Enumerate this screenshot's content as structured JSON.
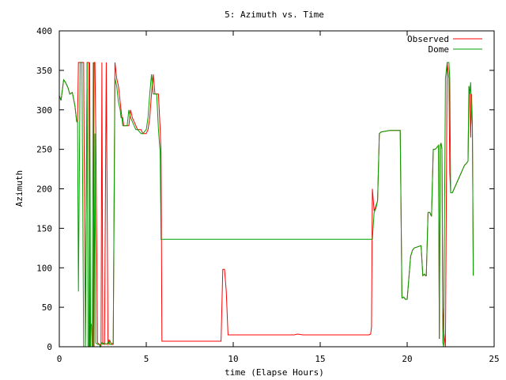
{
  "chart_data": {
    "type": "line",
    "title": "5: Azimuth vs. Time",
    "xlabel": "time (Elapse Hours)",
    "ylabel": "Azimuth",
    "xlim": [
      0,
      25
    ],
    "ylim": [
      0,
      400
    ],
    "xticks": [
      0,
      5,
      10,
      15,
      20,
      25
    ],
    "yticks": [
      0,
      50,
      100,
      150,
      200,
      250,
      300,
      350,
      400
    ],
    "grid": false,
    "legend_position": "top-right",
    "series": [
      {
        "name": "Observed",
        "color": "#ff0000",
        "x": [
          0,
          0.1,
          0.25,
          0.35,
          0.5,
          0.6,
          0.75,
          0.9,
          1.0,
          1.05,
          1.1,
          1.2,
          1.3,
          1.4,
          1.5,
          1.6,
          1.65,
          1.7,
          1.75,
          1.8,
          1.85,
          1.9,
          1.95,
          2.0,
          2.05,
          2.1,
          2.2,
          2.3,
          2.35,
          2.4,
          2.45,
          2.5,
          2.6,
          2.7,
          2.8,
          2.85,
          2.9,
          3.0,
          3.1,
          3.2,
          3.3,
          3.4,
          3.5,
          3.55,
          3.6,
          3.65,
          3.7,
          3.8,
          3.9,
          4.0,
          4.1,
          4.2,
          4.3,
          4.4,
          4.5,
          4.7,
          4.8,
          5.0,
          5.1,
          5.2,
          5.3,
          5.4,
          5.5,
          5.6,
          5.7,
          5.8,
          5.85,
          5.9,
          6.0,
          9.2,
          9.3,
          9.4,
          9.5,
          9.6,
          9.7,
          13.5,
          13.7,
          14.0,
          17.8,
          17.9,
          17.95,
          18.0,
          18.1,
          18.2,
          18.3,
          18.4,
          18.5,
          19.0,
          19.6,
          19.7,
          19.75,
          19.8,
          19.9,
          20.0,
          20.2,
          20.25,
          20.3,
          20.4,
          20.8,
          20.9,
          21.0,
          21.05,
          21.1,
          21.2,
          21.3,
          21.4,
          21.5,
          21.6,
          21.7,
          21.8,
          21.85,
          21.9,
          21.95,
          22.0,
          22.05,
          22.1,
          22.2,
          22.3,
          22.4,
          22.45,
          22.5,
          22.6,
          22.7,
          22.8,
          22.9,
          23.0,
          23.1,
          23.2,
          23.3,
          23.4,
          23.5,
          23.55,
          23.6,
          23.65,
          23.7,
          23.75,
          23.8
        ],
        "y": [
          318,
          312,
          338,
          335,
          328,
          320,
          322,
          305,
          285,
          285,
          360,
          360,
          360,
          360,
          0,
          360,
          360,
          360,
          0,
          30,
          27,
          0,
          0,
          360,
          360,
          270,
          5,
          3,
          3,
          0,
          360,
          5,
          3,
          360,
          3,
          5,
          8,
          3,
          3,
          360,
          340,
          330,
          310,
          300,
          290,
          290,
          280,
          280,
          280,
          280,
          300,
          290,
          285,
          280,
          275,
          275,
          270,
          270,
          275,
          290,
          320,
          345,
          320,
          320,
          320,
          275,
          245,
          7,
          7,
          7,
          7,
          98,
          98,
          70,
          15,
          15,
          16,
          15,
          15,
          16,
          25,
          200,
          172,
          178,
          185,
          270,
          272,
          274,
          274,
          62,
          62,
          63,
          60,
          60,
          115,
          118,
          122,
          125,
          128,
          90,
          92,
          90,
          90,
          170,
          170,
          165,
          250,
          250,
          252,
          255,
          10,
          255,
          258,
          250,
          50,
          20,
          0,
          360,
          340,
          220,
          195,
          195,
          200,
          205,
          210,
          215,
          220,
          225,
          230,
          232,
          235,
          330,
          320,
          265,
          320,
          280,
          90
        ]
      },
      {
        "name": "Dome",
        "color": "#00a000",
        "x": [
          0,
          0.1,
          0.25,
          0.35,
          0.5,
          0.6,
          0.75,
          0.9,
          1.0,
          1.05,
          1.1,
          1.2,
          1.3,
          1.4,
          1.5,
          1.6,
          1.65,
          1.7,
          1.75,
          1.8,
          1.85,
          1.9,
          1.95,
          2.0,
          2.05,
          2.1,
          2.2,
          2.3,
          2.35,
          2.4,
          2.45,
          2.5,
          2.6,
          2.7,
          2.8,
          2.85,
          2.9,
          3.0,
          3.1,
          3.2,
          3.3,
          3.4,
          3.5,
          3.55,
          3.6,
          3.65,
          3.7,
          3.8,
          3.9,
          4.0,
          4.1,
          4.2,
          4.3,
          4.4,
          4.5,
          4.7,
          4.8,
          5.0,
          5.1,
          5.2,
          5.3,
          5.4,
          5.5,
          5.6,
          5.7,
          5.8,
          5.85,
          5.9,
          6.0,
          18.0,
          18.1,
          18.2,
          18.3,
          18.4,
          18.5,
          19.0,
          19.6,
          19.7,
          19.75,
          19.8,
          19.9,
          20.0,
          20.2,
          20.25,
          20.3,
          20.4,
          20.8,
          20.9,
          21.0,
          21.05,
          21.1,
          21.2,
          21.3,
          21.4,
          21.5,
          21.6,
          21.7,
          21.8,
          21.85,
          21.9,
          21.95,
          22.0,
          22.05,
          22.1,
          22.2,
          22.3,
          22.4,
          22.45,
          22.5,
          22.6,
          22.7,
          22.8,
          22.9,
          23.0,
          23.1,
          23.2,
          23.3,
          23.4,
          23.5,
          23.55,
          23.6,
          23.65,
          23.7,
          23.75,
          23.8
        ],
        "y": [
          318,
          312,
          338,
          335,
          328,
          320,
          322,
          305,
          285,
          285,
          70,
          360,
          360,
          0,
          0,
          360,
          0,
          0,
          360,
          0,
          0,
          0,
          360,
          0,
          270,
          5,
          3,
          3,
          0,
          3,
          5,
          3,
          5,
          3,
          5,
          8,
          3,
          3,
          5,
          340,
          330,
          310,
          300,
          290,
          290,
          280,
          280,
          280,
          280,
          300,
          290,
          285,
          280,
          275,
          275,
          270,
          270,
          275,
          290,
          320,
          345,
          320,
          320,
          320,
          275,
          245,
          136,
          136,
          136,
          136,
          170,
          175,
          185,
          270,
          272,
          274,
          274,
          62,
          62,
          63,
          60,
          60,
          115,
          118,
          122,
          125,
          128,
          90,
          92,
          90,
          90,
          170,
          170,
          165,
          250,
          250,
          252,
          255,
          10,
          255,
          258,
          250,
          5,
          0,
          340,
          360,
          360,
          340,
          195,
          195,
          200,
          205,
          210,
          215,
          220,
          225,
          230,
          232,
          235,
          330,
          320,
          335,
          300,
          280,
          90
        ]
      }
    ]
  }
}
